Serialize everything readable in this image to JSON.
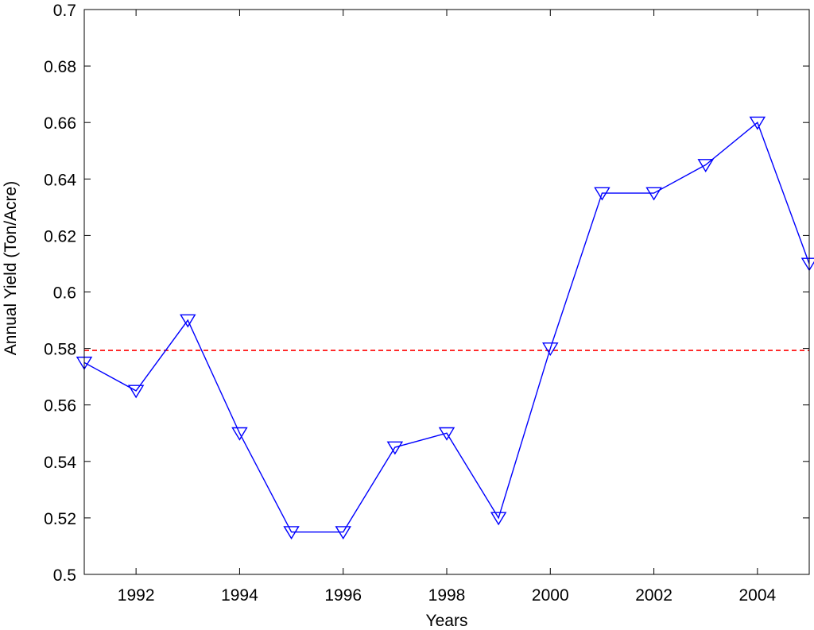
{
  "chart_data": {
    "type": "line",
    "title": "",
    "xlabel": "Years",
    "ylabel": "Annual Yield (Ton/Acre)",
    "xlim": [
      1991,
      2005
    ],
    "ylim": [
      0.5,
      0.7
    ],
    "x_ticks": [
      1992,
      1994,
      1996,
      1998,
      2000,
      2002,
      2004
    ],
    "x_tick_labels": [
      "1992",
      "1994",
      "1996",
      "1998",
      "2000",
      "2002",
      "2004"
    ],
    "y_ticks": [
      0.5,
      0.52,
      0.54,
      0.56,
      0.58,
      0.6,
      0.62,
      0.64,
      0.66,
      0.68,
      0.7
    ],
    "y_tick_labels": [
      "0.5",
      "0.52",
      "0.54",
      "0.56",
      "0.58",
      "0.6",
      "0.62",
      "0.64",
      "0.66",
      "0.68",
      "0.7"
    ],
    "grid": false,
    "legend": "none",
    "series": [
      {
        "x": [
          1991,
          1992,
          1993,
          1994,
          1995,
          1996,
          1997,
          1998,
          1999,
          2000,
          2001,
          2002,
          2003,
          2004,
          2005
        ],
        "y": [
          0.575,
          0.565,
          0.59,
          0.55,
          0.515,
          0.515,
          0.545,
          0.55,
          0.52,
          0.58,
          0.635,
          0.635,
          0.645,
          0.66,
          0.61
        ],
        "color": "#0000ff",
        "marker": "triangle-down",
        "line_style": "solid"
      }
    ],
    "reference_lines": [
      {
        "axis": "y",
        "value": 0.5793,
        "color": "#ff0000",
        "line_style": "dashed"
      }
    ]
  }
}
